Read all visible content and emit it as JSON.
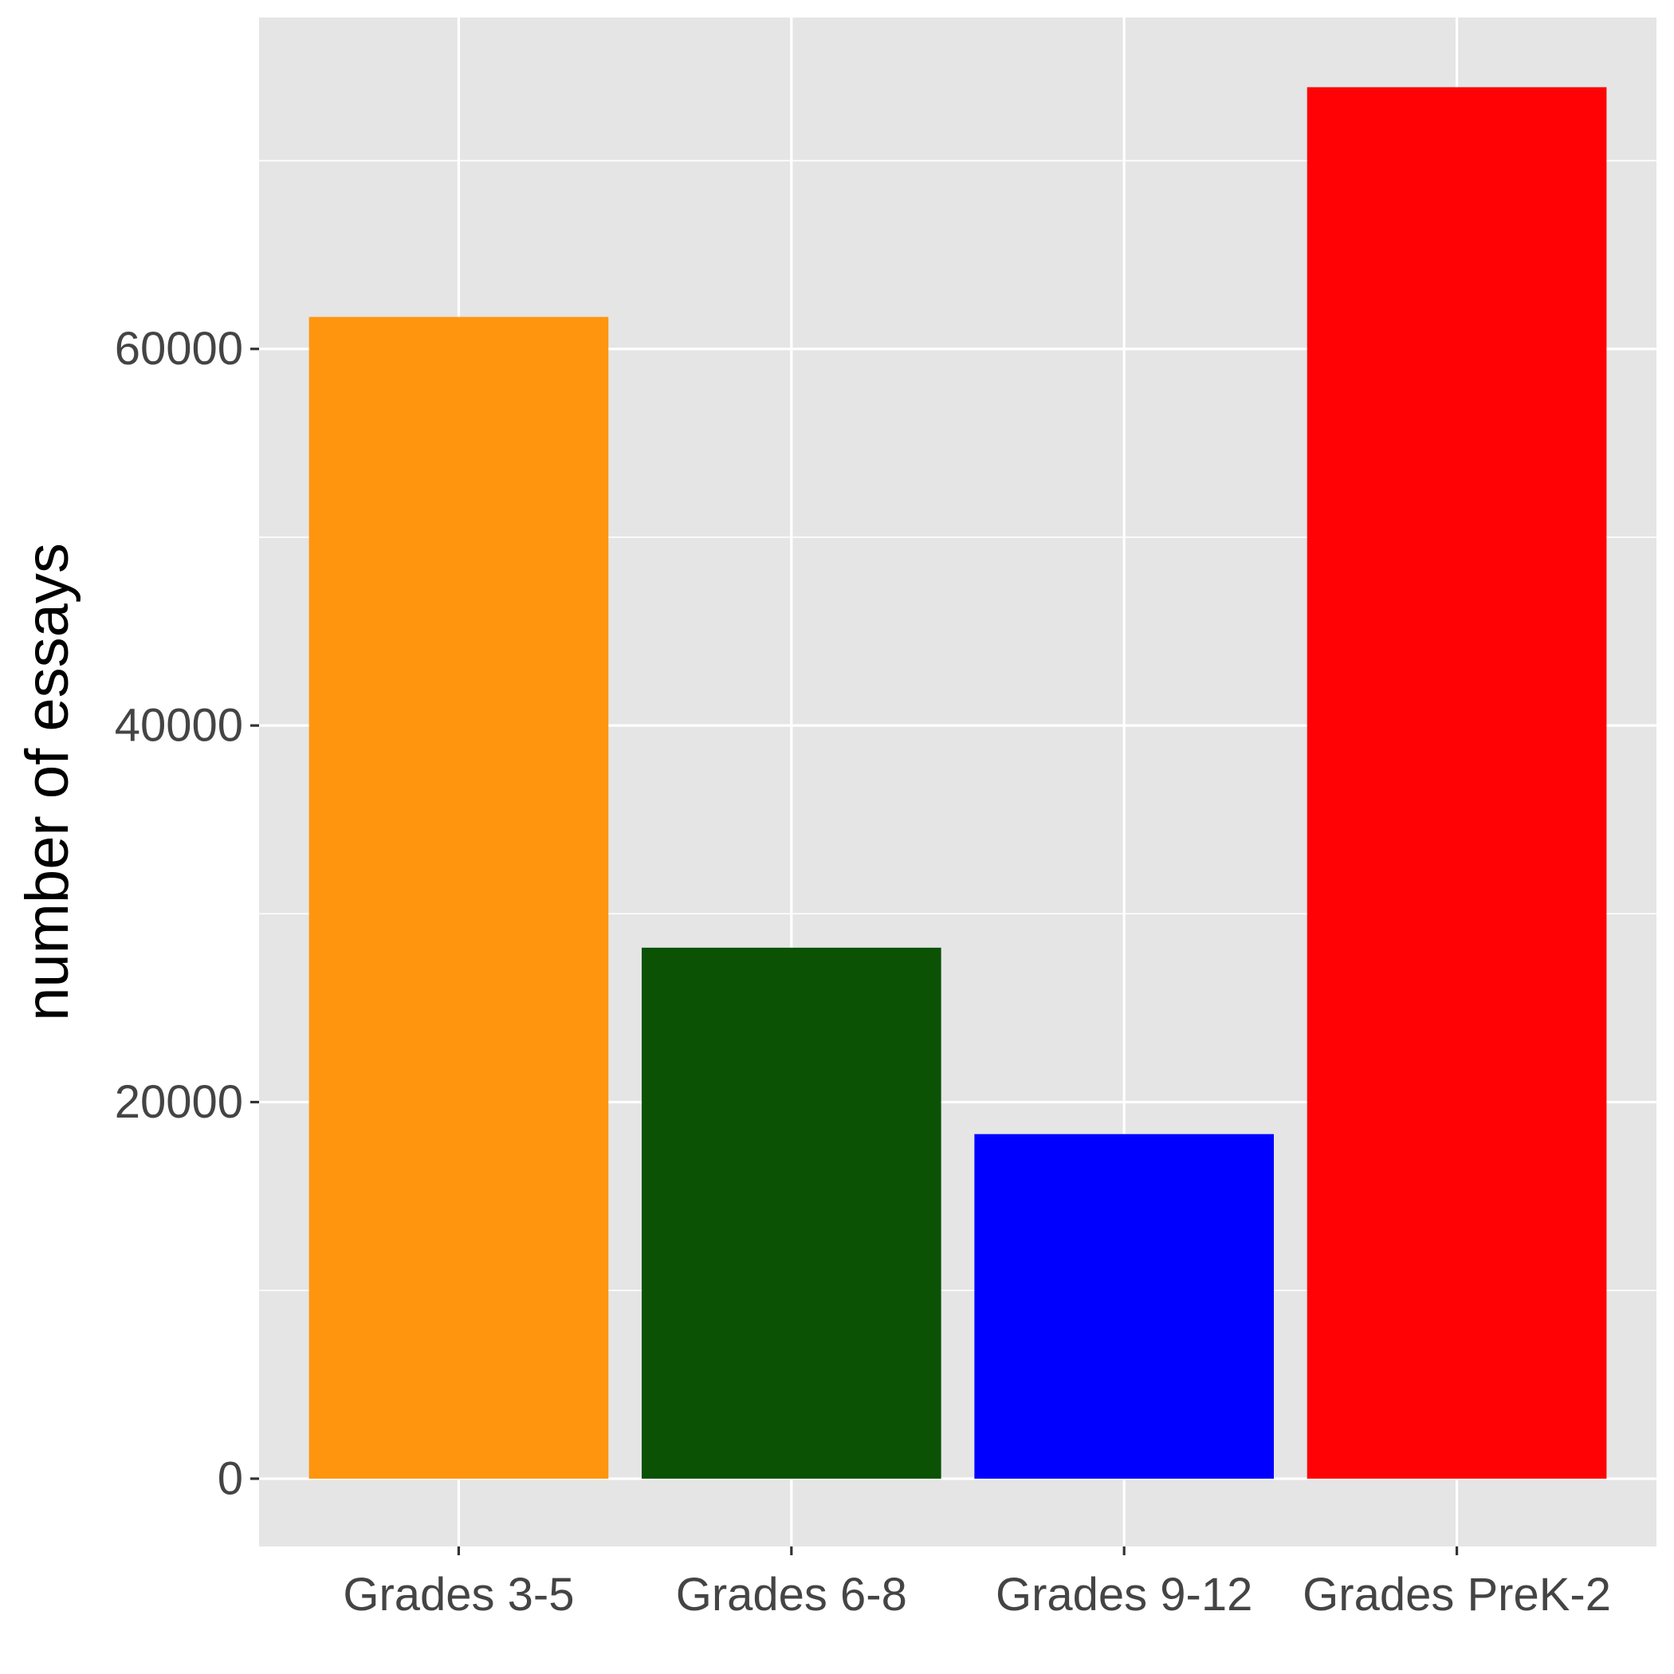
{
  "chart_data": {
    "type": "bar",
    "title": "",
    "xlabel": "",
    "ylabel": "number of essays",
    "categories": [
      "Grades 3-5",
      "Grades 6-8",
      "Grades 9-12",
      "Grades PreK-2"
    ],
    "values": [
      61700,
      28200,
      18300,
      73900
    ],
    "colors": [
      "#FF950E",
      "#0B5205",
      "#0000FF",
      "#FF0206"
    ],
    "ylim": [
      -3600,
      77600
    ],
    "yticks": [
      0,
      20000,
      40000,
      60000
    ],
    "ytick_labels": [
      "0",
      "20000",
      "40000",
      "60000"
    ],
    "grid": true,
    "legend": "none",
    "panel_background": "#E5E5E5",
    "grid_color": "#FFFFFF"
  }
}
